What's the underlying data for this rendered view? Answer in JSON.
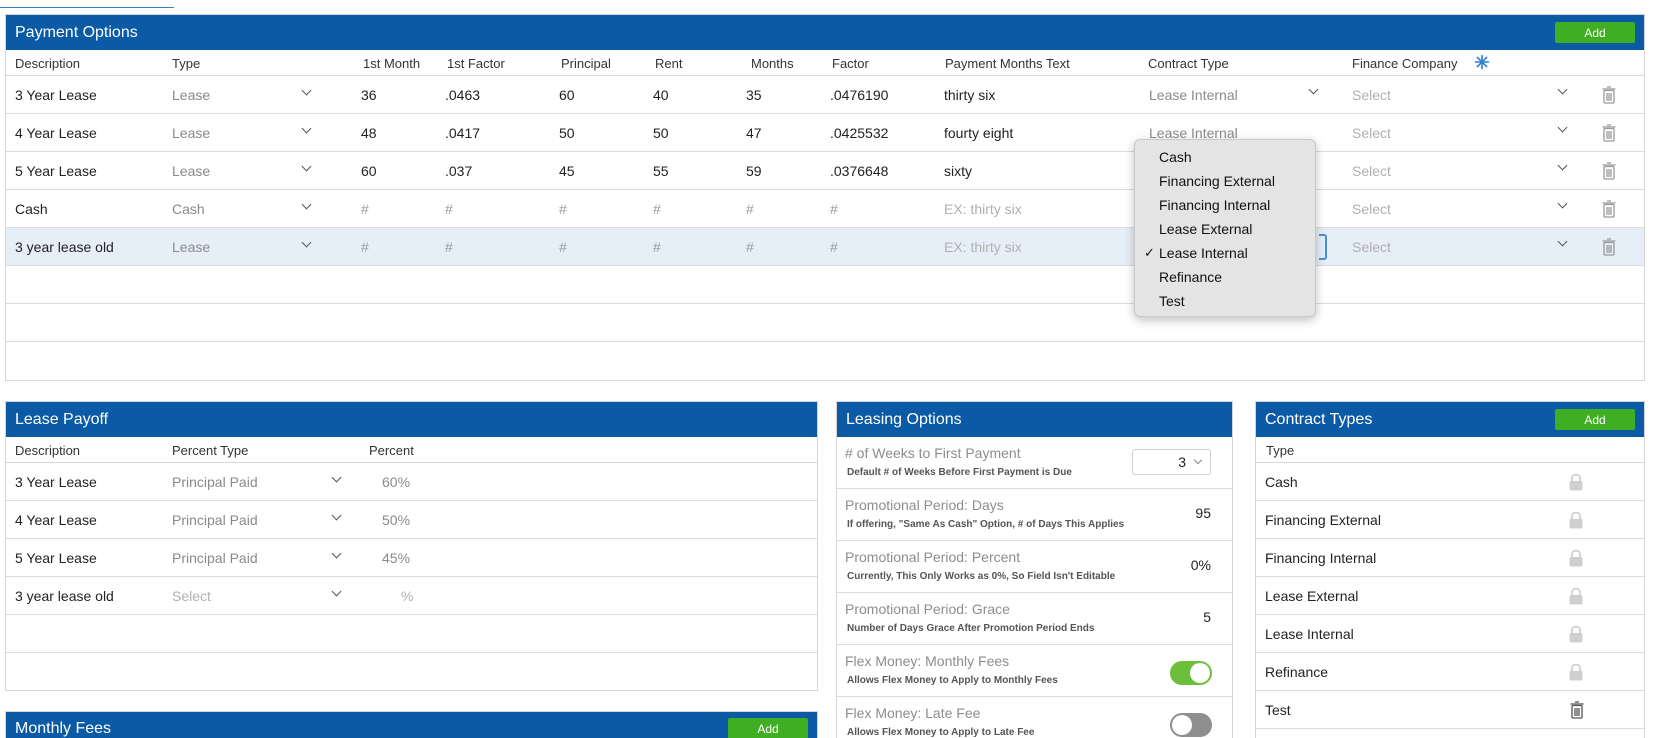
{
  "payment_options": {
    "title": "Payment Options",
    "add_label": "Add",
    "columns": [
      "Description",
      "Type",
      "1st Month",
      "1st Factor",
      "Principal",
      "Rent",
      "Months",
      "Factor",
      "Payment Months Text",
      "Contract Type",
      "Finance Company"
    ],
    "rows": [
      {
        "description": "3 Year Lease",
        "type": "Lease",
        "first_month": "36",
        "first_factor": ".0463",
        "principal": "60",
        "rent": "40",
        "months": "35",
        "factor": ".0476190",
        "months_text": "thirty six",
        "contract_type": "Lease Internal",
        "finance_company": "Select"
      },
      {
        "description": "4 Year Lease",
        "type": "Lease",
        "first_month": "48",
        "first_factor": ".0417",
        "principal": "50",
        "rent": "50",
        "months": "47",
        "factor": ".0425532",
        "months_text": "fourty eight",
        "contract_type": "Lease Internal",
        "finance_company": "Select"
      },
      {
        "description": "5 Year Lease",
        "type": "Lease",
        "first_month": "60",
        "first_factor": ".037",
        "principal": "45",
        "rent": "55",
        "months": "59",
        "factor": ".0376648",
        "months_text": "sixty",
        "contract_type": "",
        "finance_company": "Select"
      },
      {
        "description": "Cash",
        "type": "Cash",
        "first_month": "#",
        "first_factor": "#",
        "principal": "#",
        "rent": "#",
        "months": "#",
        "factor": "#",
        "months_text": "EX: thirty six",
        "contract_type": "",
        "finance_company": "Select"
      },
      {
        "description": "3 year lease old",
        "type": "Lease",
        "first_month": "#",
        "first_factor": "#",
        "principal": "#",
        "rent": "#",
        "months": "#",
        "factor": "#",
        "months_text": "EX: thirty six",
        "contract_type": "",
        "finance_company": "Select"
      }
    ]
  },
  "contract_type_dropdown": {
    "options": [
      "Cash",
      "Financing External",
      "Financing Internal",
      "Lease External",
      "Lease Internal",
      "Refinance",
      "Test"
    ],
    "selected": "Lease Internal",
    "check": "✓"
  },
  "lease_payoff": {
    "title": "Lease Payoff",
    "columns": [
      "Description",
      "Percent Type",
      "Percent"
    ],
    "rows": [
      {
        "description": "3 Year Lease",
        "percent_type": "Principal Paid",
        "percent": "60%"
      },
      {
        "description": "4 Year Lease",
        "percent_type": "Principal Paid",
        "percent": "50%"
      },
      {
        "description": "5 Year Lease",
        "percent_type": "Principal Paid",
        "percent": "45%"
      },
      {
        "description": "3 year lease old",
        "percent_type": "Select",
        "percent": "%"
      }
    ]
  },
  "monthly_fees": {
    "title": "Monthly Fees",
    "add_label": "Add"
  },
  "leasing_options": {
    "title": "Leasing Options",
    "rows": [
      {
        "title": "# of Weeks to First Payment",
        "sub": "Default # of Weeks Before First Payment is Due",
        "value": "3"
      },
      {
        "title": "Promotional Period: Days",
        "sub": "If offering, \"Same As Cash\" Option, # of Days This Applies",
        "value": "95"
      },
      {
        "title": "Promotional Period: Percent",
        "sub": "Currently, This Only Works as 0%, So Field Isn't Editable",
        "value": "0%"
      },
      {
        "title": "Promotional Period: Grace",
        "sub": "Number of Days Grace After Promotion Period Ends",
        "value": "5"
      },
      {
        "title": "Flex Money: Monthly Fees",
        "sub": "Allows Flex Money to Apply to Monthly Fees",
        "enabled": true
      },
      {
        "title": "Flex Money: Late Fee",
        "sub": "Allows Flex Money to Apply to Late Fee",
        "enabled": false
      }
    ]
  },
  "contract_types": {
    "title": "Contract Types",
    "add_label": "Add",
    "column": "Type",
    "rows": [
      "Cash",
      "Financing External",
      "Financing Internal",
      "Lease External",
      "Lease Internal",
      "Refinance",
      "Test"
    ]
  },
  "colors": {
    "header_blue": "#0b5aa6",
    "add_green": "#3fae22",
    "toggle_on": "#6dbf3b",
    "selected_row": "#e6eef8"
  }
}
